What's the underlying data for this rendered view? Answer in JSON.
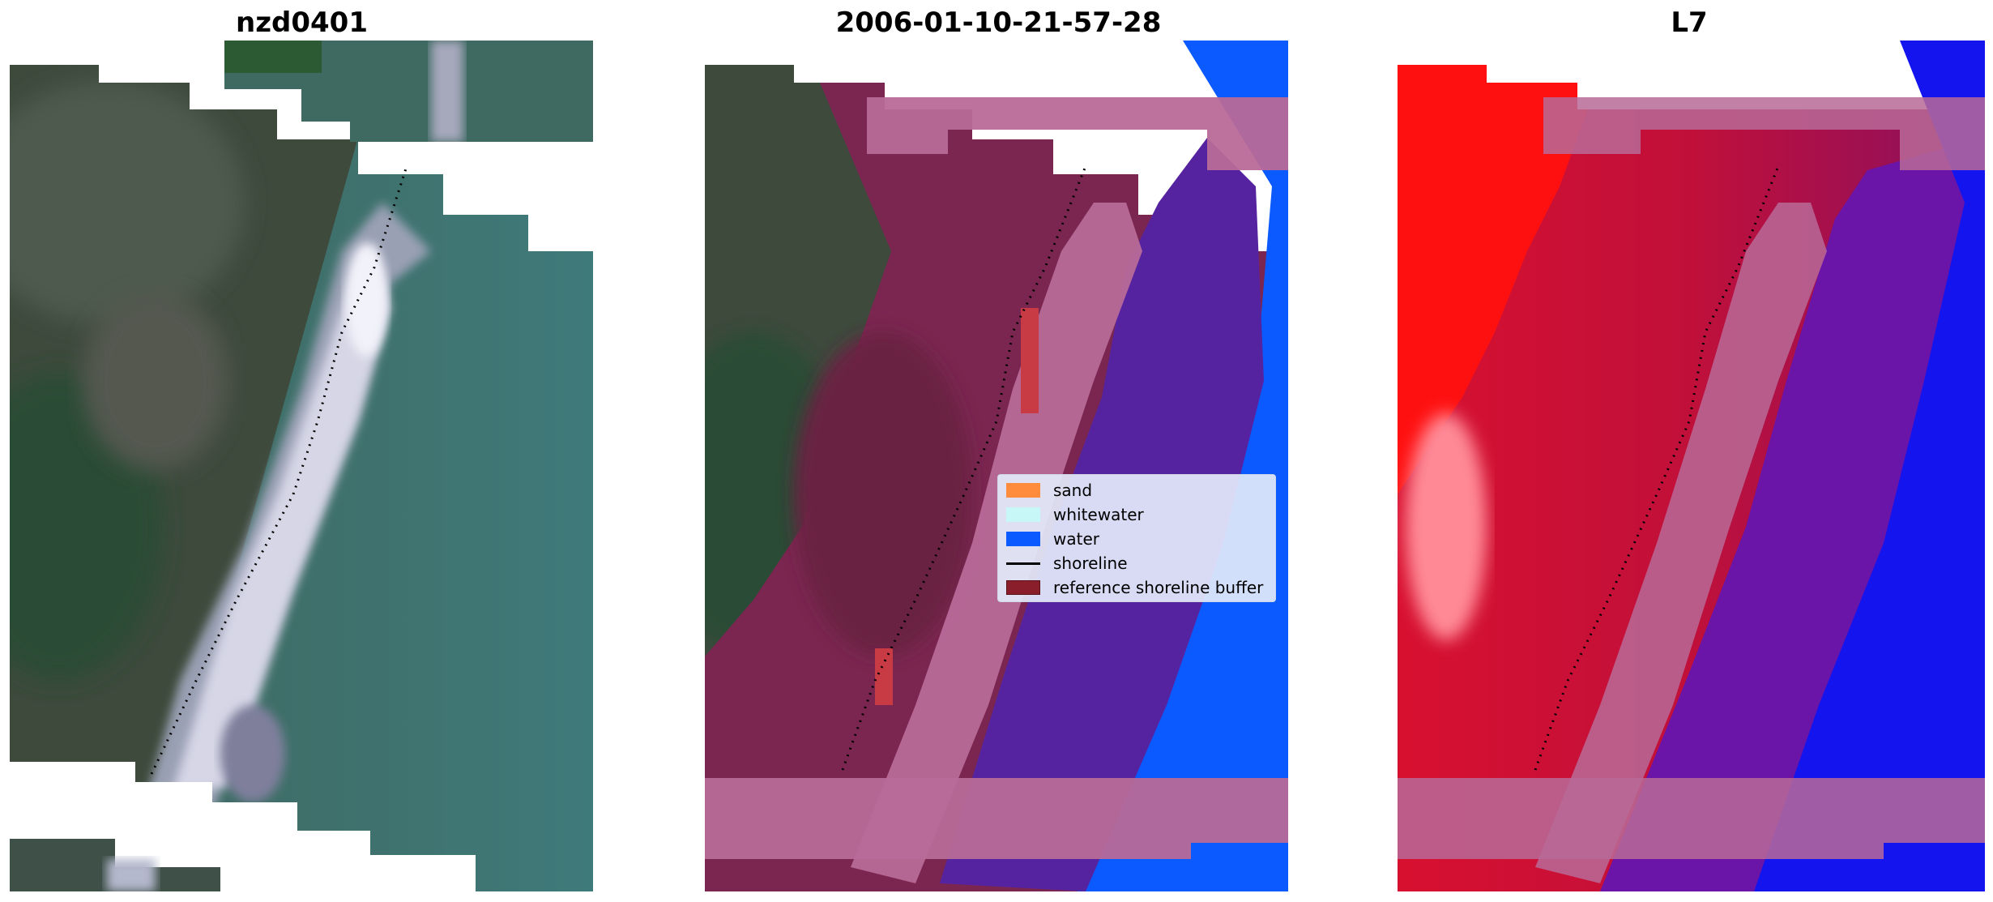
{
  "panels": [
    {
      "title": "nzd0401",
      "view": "rgb"
    },
    {
      "title": "2006-01-10-21-57-28",
      "view": "classified"
    },
    {
      "title": "L7",
      "view": "index"
    }
  ],
  "legend": {
    "items": [
      {
        "label": "sand",
        "kind": "patch",
        "color": "#ff8c3c"
      },
      {
        "label": "whitewater",
        "kind": "patch",
        "color": "#c8f7f7"
      },
      {
        "label": "water",
        "kind": "patch",
        "color": "#0a5aff"
      },
      {
        "label": "shoreline",
        "kind": "line",
        "color": "#000000"
      },
      {
        "label": "reference shoreline buffer",
        "kind": "patch",
        "color": "#8b1e2b"
      }
    ]
  },
  "colors": {
    "land": "#3c4a3a",
    "land_dark": "#2b4a34",
    "beach_white": "#d8d8e6",
    "ocean": "#3f7777",
    "buffer_land": "#7a2650",
    "buffer_pink": "#b86a98",
    "classified_water": "#5623a0",
    "water_blue": "#0a5aff",
    "index_red": "#ff1010",
    "index_crimson": "#c0103a",
    "index_purple": "#6a14a8",
    "index_blue": "#1414ee",
    "shoreline": "#000000"
  }
}
